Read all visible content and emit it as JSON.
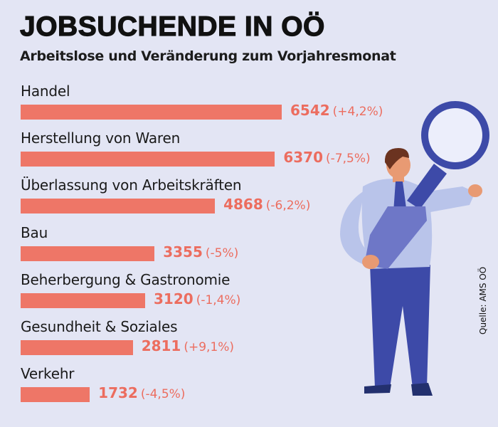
{
  "title": "JOBSUCHENDE IN OÖ",
  "subtitle": "Arbeitslose und Veränderung zum Vorjahresmonat",
  "source": "Quelle: AMS OÖ",
  "colors": {
    "bar": "#ee7667",
    "value": "#ec6d5f",
    "background": "#e3e5f4"
  },
  "chart_data": {
    "type": "bar",
    "orientation": "horizontal",
    "title": "JOBSUCHENDE IN OÖ",
    "subtitle": "Arbeitslose und Veränderung zum Vorjahresmonat",
    "xlabel": "",
    "ylabel": "",
    "xlim": [
      0,
      6542
    ],
    "categories": [
      "Handel",
      "Herstellung von Waren",
      "Überlassung von Arbeitskräften",
      "Bau",
      "Beherbergung & Gastronomie",
      "Gesundheit & Soziales",
      "Verkehr"
    ],
    "values": [
      6542,
      6370,
      4868,
      3355,
      3120,
      2811,
      1732
    ],
    "changes": [
      "(+4,2%)",
      "(-7,5%)",
      "(-6,2%)",
      "(-5%)",
      "(-1,4%)",
      "(+9,1%)",
      "(-4,5%)"
    ]
  }
}
